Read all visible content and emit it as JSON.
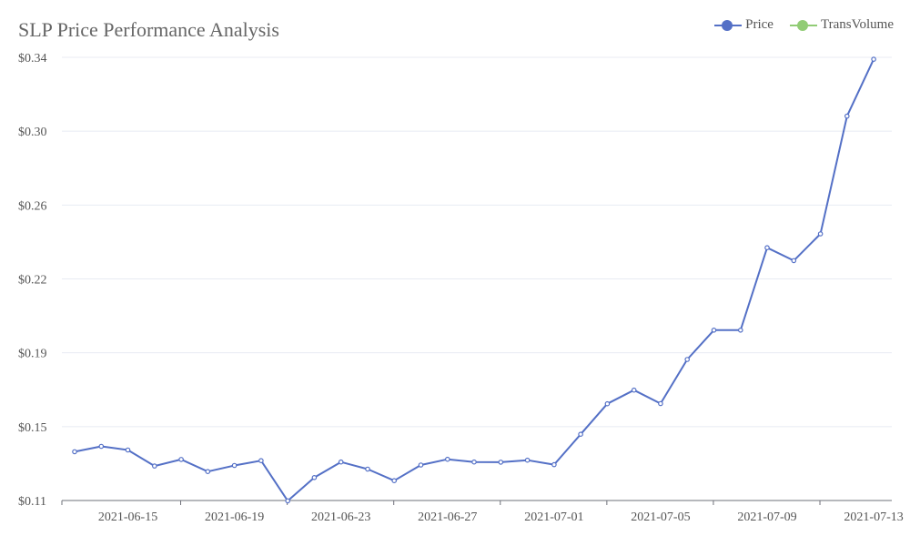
{
  "chart_data": {
    "type": "line",
    "title": "SLP Price Performance Analysis",
    "legend": [
      {
        "name": "Price",
        "color": "#5470c6"
      },
      {
        "name": "TransVolume",
        "color": "#91cc75"
      }
    ],
    "y_ticks": [
      "$0.11",
      "$0.15",
      "$0.19",
      "$0.22",
      "$0.26",
      "$0.30",
      "$0.34"
    ],
    "ylim": [
      0.11,
      0.34
    ],
    "x_ticks": [
      "2021-06-15",
      "2021-06-19",
      "2021-06-23",
      "2021-06-27",
      "2021-07-01",
      "2021-07-05",
      "2021-07-09",
      "2021-07-13"
    ],
    "x": [
      "2021-06-13",
      "2021-06-14",
      "2021-06-15",
      "2021-06-16",
      "2021-06-17",
      "2021-06-18",
      "2021-06-19",
      "2021-06-20",
      "2021-06-21",
      "2021-06-22",
      "2021-06-23",
      "2021-06-24",
      "2021-06-25",
      "2021-06-26",
      "2021-06-27",
      "2021-06-28",
      "2021-06-29",
      "2021-06-30",
      "2021-07-01",
      "2021-07-02",
      "2021-07-03",
      "2021-07-04",
      "2021-07-05",
      "2021-07-06",
      "2021-07-07",
      "2021-07-08",
      "2021-07-09",
      "2021-07-10",
      "2021-07-11",
      "2021-07-12",
      "2021-07-13"
    ],
    "series": [
      {
        "name": "Price",
        "color": "#5470c6",
        "values": [
          0.1353,
          0.1381,
          0.1362,
          0.1279,
          0.1313,
          0.125,
          0.1282,
          0.1307,
          0.1098,
          0.1219,
          0.13,
          0.1263,
          0.1203,
          0.1284,
          0.1314,
          0.13,
          0.1299,
          0.1309,
          0.1286,
          0.1444,
          0.1602,
          0.1673,
          0.1603,
          0.1832,
          0.1984,
          0.1984,
          0.2412,
          0.2345,
          0.2484,
          0.3095,
          0.339
        ]
      }
    ]
  }
}
